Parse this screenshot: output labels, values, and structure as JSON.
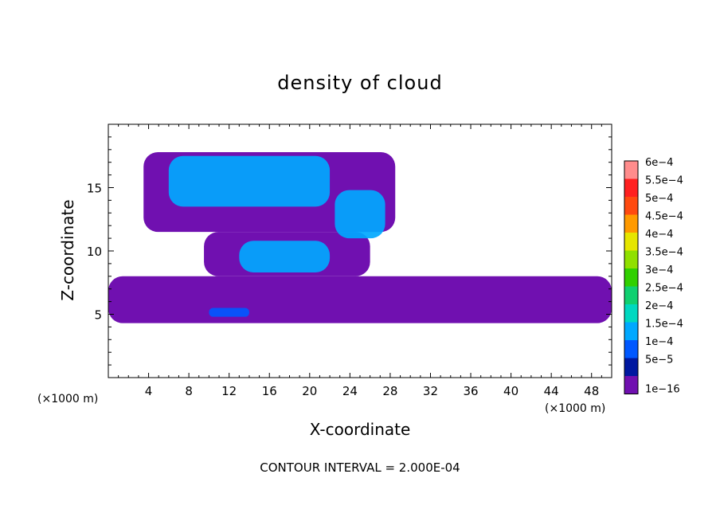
{
  "chart_data": {
    "type": "heatmap",
    "title": "density of cloud",
    "xlabel": "X-coordinate",
    "ylabel": "Z-coordinate",
    "x_unit_left": "(×1000 m)",
    "x_unit_right": "(×1000 m)",
    "xlim": [
      0,
      50
    ],
    "ylim": [
      0,
      20
    ],
    "xticks": [
      4,
      8,
      12,
      16,
      20,
      24,
      28,
      32,
      36,
      40,
      44,
      48
    ],
    "yticks": [
      5,
      10,
      15
    ],
    "footer": "CONTOUR INTERVAL = 2.000E-04",
    "colorbar": {
      "labels": [
        "6e−4",
        "5.5e−4",
        "5e−4",
        "4.5e−4",
        "4e−4",
        "3.5e−4",
        "3e−4",
        "2.5e−4",
        "2e−4",
        "1.5e−4",
        "1e−4",
        "5e−5",
        "1e−16"
      ],
      "colors": [
        "#ff8c8c",
        "#ff2020",
        "#ff4a10",
        "#ff9a00",
        "#e6e600",
        "#90e000",
        "#30d000",
        "#10d070",
        "#00d8c0",
        "#00a8ff",
        "#0058ff",
        "#0018a0",
        "#7010b0"
      ]
    },
    "cloud_regions": [
      {
        "level": "1e-16",
        "x": [
          0,
          50
        ],
        "z": [
          4.3,
          8.0
        ]
      },
      {
        "level": "1e-16",
        "x": [
          3.5,
          28.5
        ],
        "z": [
          11.5,
          17.8
        ]
      },
      {
        "level": "1e-16",
        "x": [
          9.5,
          26.0
        ],
        "z": [
          8.0,
          11.5
        ]
      },
      {
        "level": "1.5e-4",
        "x": [
          6.0,
          22.0
        ],
        "z": [
          13.5,
          17.5
        ]
      },
      {
        "level": "1.5e-4",
        "x": [
          22.5,
          27.5
        ],
        "z": [
          11.0,
          14.8
        ]
      },
      {
        "level": "1.5e-4",
        "x": [
          13.0,
          22.0
        ],
        "z": [
          8.3,
          10.8
        ]
      },
      {
        "level": "1e-4",
        "x": [
          10.0,
          14.0
        ],
        "z": [
          4.8,
          5.5
        ]
      }
    ]
  }
}
